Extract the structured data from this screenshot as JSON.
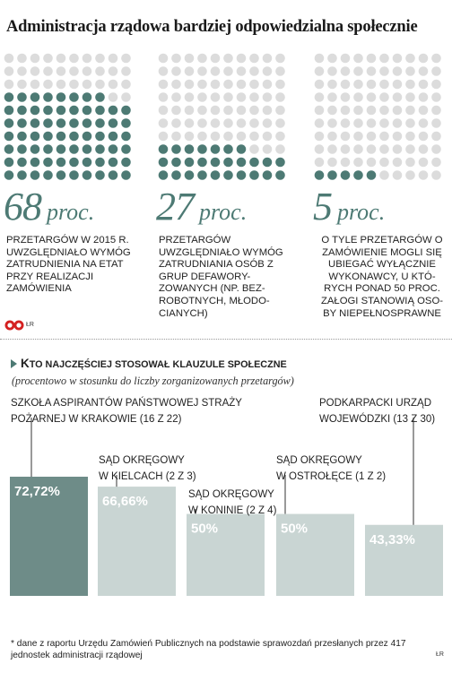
{
  "title": "Administracja rządowa bardziej odpowiedzialna społecznie",
  "colors": {
    "accent": "#4d7a74",
    "dim": "#dcdcdc",
    "bar_highlight": "#6e8c88",
    "bar_normal": "#c9d5d3"
  },
  "stats": [
    {
      "value": "68",
      "unit": "proc.",
      "filled": 68,
      "text": "PRZETARGÓW W 2015 R. UWZGLĘDNIAŁO WYMÓG ZATRUDNIENIA NA ETAT PRZY REALIZACJI ZAMÓWIENIA"
    },
    {
      "value": "27",
      "unit": "proc.",
      "filled": 27,
      "text": "PRZETARGÓW UWZGLĘDNIAŁO WYMÓG ZATRUDNIANIA OSÓB Z GRUP DEFAWORY-ZOWANYCH (NP. BEZ-ROBOTNYCH, MŁODO-CIANYCH)"
    },
    {
      "value": "5",
      "unit": "proc.",
      "filled": 5,
      "text": "O TYLE PRZETARGÓW O ZAMÓWIENIE MOGLI SIĘ UBIEGAĆ WYŁĄCZNIE WYKONAWCY, U KTÓ-RYCH PONAD 50 PROC. ZAŁOGI STANOWIĄ OSO-BY NIEPEŁNOSPRAWNE"
    }
  ],
  "logo_text": "ŁR",
  "credit": "ŁR",
  "subchart": {
    "marker": "•",
    "title_first": "K",
    "title_rest": "TO NAJCZĘŚCIEJ STOSOWAŁ KLAUZULE SPOŁECZNE",
    "note": "(procentowo w stosunku do liczby zorganizowanych przetargów)"
  },
  "chart_data": {
    "type": "bar",
    "categories": [
      "SZKOŁA ASPIRANTÓW PAŃSTWOWEJ STRAŻY POŻARNEJ W KRAKOWIE (16 Z 22)",
      "SĄD OKRĘGOWY W KIELCACH (2 Z 3)",
      "SĄD OKRĘGOWY W KONINIE (2 Z 4)",
      "SĄD OKRĘGOWY W OSTROŁĘCE (1 Z 2)",
      "PODKARPACKI URZĄD WOJEWÓDZKI (13 Z 30)"
    ],
    "label_lines": [
      [
        "SZKOŁA ASPIRANTÓW PAŃSTWOWEJ STRAŻY",
        "POŻARNEJ W KRAKOWIE (16 Z 22)"
      ],
      [
        "SĄD OKRĘGOWY",
        "W KIELCACH (2 Z 3)"
      ],
      [
        "SĄD OKRĘGOWY",
        "W KONINIE (2 Z 4)"
      ],
      [
        "SĄD OKRĘGOWY",
        "W OSTROŁĘCE (1 Z 2)"
      ],
      [
        "PODKARPACKI URZĄD",
        "WOJEWÓDZKI (13 Z 30)"
      ]
    ],
    "values": [
      72.72,
      66.66,
      50,
      50,
      43.33
    ],
    "value_labels": [
      "72,72%",
      "66,66%",
      "50%",
      "50%",
      "43,33%"
    ],
    "ylim": [
      0,
      100
    ],
    "highlight_index": 0
  },
  "footnote": "* dane z raportu Urzędu Zamówień Publicznych na podstawie sprawozdań przesłanych przez 417 jednostek administracji rządowej"
}
